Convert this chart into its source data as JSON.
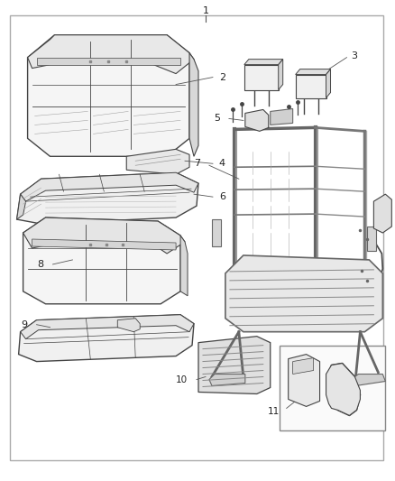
{
  "background_color": "#ffffff",
  "border_color": "#bbbbbb",
  "line_color": "#444444",
  "gray_fill": "#f2f2f2",
  "dark_fill": "#e0e0e0",
  "fig_width": 4.38,
  "fig_height": 5.33,
  "dpi": 100
}
